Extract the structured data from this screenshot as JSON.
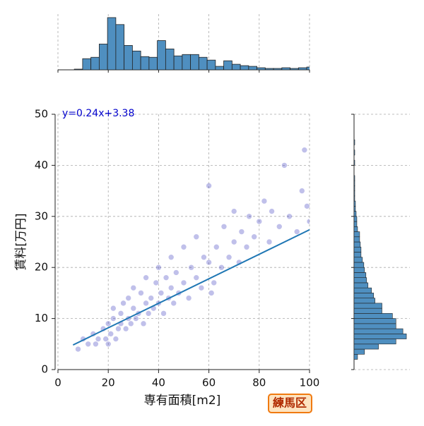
{
  "chart_data": [
    {
      "type": "scatter",
      "xlabel": "専有面積[m2]",
      "ylabel": "賃料[万円]",
      "annotation": "y=0.24x+3.38",
      "annotation_color": "#0000cc",
      "badge": "練馬区",
      "xlim": [
        0,
        100
      ],
      "ylim": [
        0,
        50
      ],
      "xticks": [
        0,
        20,
        40,
        60,
        80,
        100
      ],
      "yticks": [
        0,
        10,
        20,
        30,
        40,
        50
      ],
      "grid": true,
      "color": "#3030b8",
      "x": [
        8,
        10,
        12,
        14,
        15,
        16,
        18,
        19,
        20,
        20,
        21,
        22,
        22,
        23,
        24,
        25,
        25,
        26,
        27,
        28,
        28,
        29,
        30,
        30,
        31,
        32,
        33,
        34,
        35,
        35,
        36,
        37,
        38,
        39,
        40,
        40,
        41,
        42,
        43,
        44,
        45,
        45,
        46,
        47,
        48,
        50,
        50,
        52,
        53,
        55,
        55,
        57,
        58,
        60,
        60,
        62,
        63,
        65,
        66,
        68,
        70,
        70,
        72,
        73,
        75,
        76,
        78,
        80,
        82,
        84,
        85,
        88,
        90,
        92,
        95,
        97,
        98,
        99,
        100,
        61
      ],
      "values": [
        4,
        6,
        5,
        7,
        5,
        6,
        8,
        6,
        9,
        5,
        7,
        10,
        12,
        6,
        8,
        11,
        9,
        13,
        8,
        10,
        14,
        9,
        12,
        16,
        10,
        11,
        15,
        9,
        13,
        18,
        11,
        14,
        12,
        17,
        13,
        20,
        15,
        11,
        18,
        14,
        16,
        22,
        13,
        19,
        15,
        17,
        24,
        14,
        20,
        18,
        26,
        16,
        22,
        21,
        36,
        17,
        24,
        20,
        28,
        22,
        25,
        31,
        21,
        27,
        24,
        30,
        26,
        29,
        33,
        25,
        31,
        28,
        40,
        30,
        27,
        35,
        43,
        32,
        29,
        15
      ],
      "fit": {
        "x": [
          6,
          100
        ],
        "values": [
          4.82,
          27.38
        ],
        "color": "#1f77b4"
      }
    },
    {
      "type": "histogram",
      "orientation": "vertical",
      "color": "#4f8fc0",
      "xlim": [
        0,
        100
      ],
      "ylim": [
        0,
        80
      ],
      "bins": [
        6.5,
        9.8,
        13.1,
        16.4,
        19.7,
        23.0,
        26.3,
        29.6,
        32.9,
        36.2,
        39.5,
        42.8,
        46.1,
        49.4,
        52.7,
        56.0,
        59.3,
        62.6,
        65.9,
        69.2,
        72.5,
        75.8,
        79.1,
        82.4,
        85.7,
        89.0,
        92.3,
        95.6,
        98.9,
        102.2
      ],
      "values": [
        1,
        16,
        18,
        37,
        75,
        65,
        35,
        27,
        19,
        18,
        42,
        30,
        20,
        22,
        22,
        18,
        14,
        5,
        13,
        8,
        6,
        5,
        3,
        2,
        2,
        3,
        2,
        3,
        4
      ]
    },
    {
      "type": "histogram",
      "orientation": "horizontal",
      "color": "#4f8fc0",
      "ylim": [
        0,
        50
      ],
      "xlim": [
        0,
        80
      ],
      "bins": [
        2,
        3,
        4,
        5,
        6,
        7,
        8,
        9,
        10,
        11,
        12,
        13,
        14,
        15,
        16,
        17,
        18,
        19,
        20,
        21,
        22,
        23,
        24,
        25,
        26,
        27,
        28,
        29,
        30,
        31,
        32,
        33,
        34,
        35,
        36,
        37,
        38,
        39,
        40,
        41,
        42,
        43,
        44,
        45
      ],
      "values": [
        5,
        15,
        35,
        60,
        75,
        70,
        60,
        60,
        55,
        40,
        40,
        30,
        28,
        25,
        20,
        18,
        17,
        15,
        14,
        12,
        10,
        10,
        9,
        8,
        8,
        5,
        4,
        4,
        3,
        2,
        2,
        1,
        1,
        1,
        1,
        1,
        0,
        0,
        1,
        0,
        1,
        0,
        1
      ]
    }
  ]
}
